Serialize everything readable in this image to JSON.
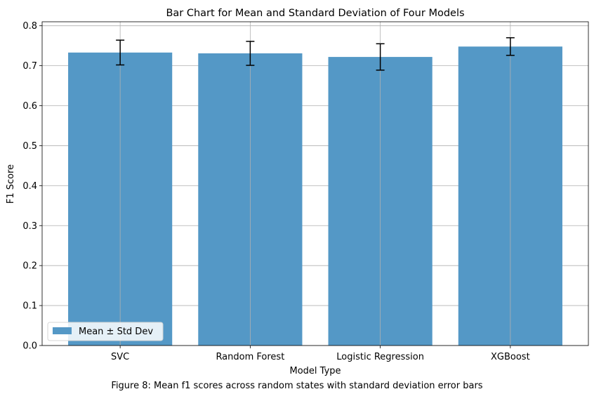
{
  "chart_data": {
    "type": "bar",
    "title": "Bar Chart for Mean and Standard Deviation of Four Models",
    "xlabel": "Model Type",
    "ylabel": "F1 Score",
    "categories": [
      "SVC",
      "Random Forest",
      "Logistic Regression",
      "XGBoost"
    ],
    "series": [
      {
        "name": "Mean ± Std Dev",
        "values": [
          0.733,
          0.731,
          0.722,
          0.748
        ],
        "std": [
          0.031,
          0.03,
          0.033,
          0.022
        ]
      }
    ],
    "ylim": [
      0,
      0.81
    ],
    "yticks": [
      "0.0",
      "0.1",
      "0.2",
      "0.3",
      "0.4",
      "0.5",
      "0.6",
      "0.7",
      "0.8"
    ],
    "grid": true,
    "legend_position": "lower-left",
    "bar_color": "#5498c6",
    "errorbar_color": "#000000",
    "grid_color": "#b0b0b0"
  },
  "caption": "Figure 8: Mean f1 scores across random states with standard deviation error bars"
}
